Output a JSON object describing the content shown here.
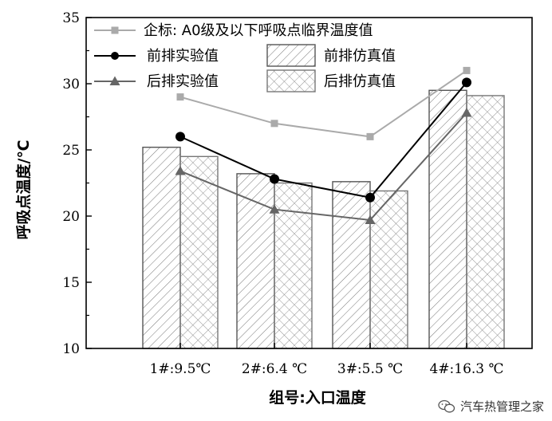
{
  "chart_data": {
    "type": "bar",
    "xlabel": "组号:入口温度",
    "ylabel": "呼吸点温度/℃",
    "ylim": [
      10,
      35
    ],
    "yticks": [
      10,
      15,
      20,
      25,
      30,
      35
    ],
    "categories": [
      "1#:9.5℃",
      "2#:6.4 ℃",
      "3#:5.5 ℃",
      "4#:16.3 ℃"
    ],
    "bar_series": [
      {
        "name": "前排仿真值",
        "values": [
          25.2,
          23.2,
          22.6,
          29.5
        ],
        "color": "#555555",
        "pattern": "diagonal"
      },
      {
        "name": "后排仿真值",
        "values": [
          24.5,
          22.5,
          21.9,
          29.1
        ],
        "color": "#777777",
        "pattern": "crosshatch"
      }
    ],
    "line_series": [
      {
        "name": "企标: A0级及以下呼吸点临界温度值",
        "values": [
          29.0,
          27.0,
          26.0,
          31.0
        ],
        "color": "#aaaaaa",
        "marker": "square"
      },
      {
        "name": "前排实验值",
        "values": [
          26.0,
          22.8,
          21.4,
          30.1
        ],
        "color": "#000000",
        "marker": "circle"
      },
      {
        "name": "后排实验值",
        "values": [
          23.4,
          20.5,
          19.7,
          27.8
        ],
        "color": "#666666",
        "marker": "triangle"
      }
    ],
    "legend_position": "top-inside",
    "grid": false
  },
  "watermark": {
    "text": "汽车热管理之家"
  }
}
